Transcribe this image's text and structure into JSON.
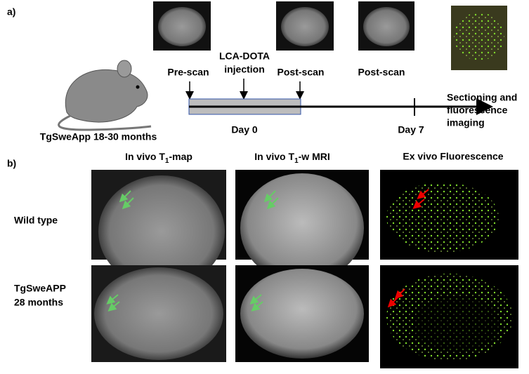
{
  "panel_a": {
    "label": "a)",
    "mouse_caption": "TgSweApp 18-30 months",
    "events": [
      "Pre-scan",
      "LCA-DOTA",
      "injection",
      "Post-scan",
      "Post-scan"
    ],
    "days": [
      "Day 0",
      "Day 7"
    ],
    "final_step": [
      "Sectioning and",
      "fluorescence",
      "imaging"
    ]
  },
  "panel_b": {
    "label": "b)",
    "columns": [
      {
        "prefix": "In vivo T",
        "sub": "1",
        "suffix": "-map"
      },
      {
        "prefix": "In vivo T",
        "sub": "1",
        "suffix": "-w MRI"
      },
      {
        "prefix": "Ex vivo Fluorescence",
        "sub": "",
        "suffix": ""
      }
    ],
    "rows": [
      [
        "Wild type"
      ],
      [
        "TgSweAPP",
        "28 months"
      ]
    ]
  }
}
